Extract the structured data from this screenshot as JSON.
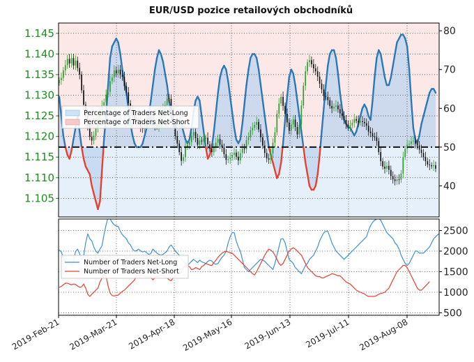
{
  "chart_data": [
    {
      "id": "price",
      "type": "candlestick",
      "title": "EUR/USD pozice retailových obchodníků",
      "left_axis": {
        "ticks": [
          "1.105",
          "1.110",
          "1.115",
          "1.120",
          "1.125",
          "1.130",
          "1.135",
          "1.140",
          "1.145"
        ],
        "range": [
          1.1005,
          1.1475
        ],
        "color": "#1f8a1f"
      },
      "right_axis": {
        "ticks": [
          "40",
          "50",
          "60",
          "70",
          "80"
        ],
        "range": [
          32,
          82
        ]
      },
      "x_ticks": [
        "2019-Feb-21",
        "2019-Mar-21",
        "2019-Apr-18",
        "2019-May-16",
        "2019-Jun-13",
        "2019-Jul-11",
        "2019-Aug-08"
      ],
      "reference_line_pct": 50,
      "legend": {
        "placement": "upper-left",
        "entries": [
          {
            "label": "Percentage of Traders Net-Long",
            "color": "#cfe3f7"
          },
          {
            "label": "Percentage of Traders Net-Short",
            "color": "#f7c9c9"
          }
        ]
      },
      "series": [
        {
          "name": "Percentage of Traders Net-Long",
          "unit": "percent",
          "above_50_color": "#2a78b8",
          "below_50_color": "#e8402f",
          "values": [
            63,
            58,
            53,
            50,
            48,
            47,
            49,
            52,
            55,
            58,
            54,
            50,
            47,
            45,
            44,
            43,
            40,
            38,
            36,
            34,
            36,
            44,
            52,
            58,
            66,
            73,
            76,
            77,
            78,
            77,
            74,
            70,
            67,
            64,
            60,
            56,
            53,
            51,
            50,
            50,
            50,
            51,
            53,
            55,
            58,
            62,
            66,
            70,
            73,
            75,
            74,
            72,
            69,
            66,
            62,
            58,
            56,
            55,
            56,
            57,
            56,
            54,
            52,
            51,
            52,
            55,
            59,
            62,
            63,
            62,
            58,
            54,
            50,
            47,
            48,
            50,
            54,
            59,
            64,
            68,
            70,
            71,
            70,
            67,
            63,
            59,
            55,
            52,
            51,
            52,
            56,
            61,
            66,
            70,
            73,
            74,
            74,
            73,
            70,
            66,
            62,
            58,
            54,
            50,
            48,
            46,
            44,
            42,
            43,
            46,
            51,
            57,
            63,
            68,
            70,
            69,
            66,
            62,
            58,
            54,
            50,
            46,
            43,
            40,
            39,
            39,
            40,
            43,
            48,
            54,
            60,
            66,
            71,
            74,
            75,
            75,
            73,
            69,
            64,
            60,
            57,
            56,
            55,
            55,
            54,
            53,
            54,
            56,
            58,
            60,
            61,
            60,
            58,
            57,
            62,
            68,
            73,
            75,
            74,
            71,
            68,
            66,
            66,
            68,
            71,
            74,
            77,
            78,
            79,
            79,
            78,
            76,
            70,
            62,
            55,
            52,
            51,
            53,
            56,
            58,
            60,
            62,
            64,
            65,
            65,
            64
          ]
        },
        {
          "name": "EUR/USD",
          "unit": "price",
          "close": [
            1.1337,
            1.1342,
            1.136,
            1.1373,
            1.1388,
            1.1377,
            1.139,
            1.1372,
            1.1384,
            1.1366,
            1.135,
            1.1312,
            1.1277,
            1.125,
            1.1226,
            1.1199,
            1.119,
            1.1202,
            1.122,
            1.1244,
            1.126,
            1.1275,
            1.1283,
            1.1301,
            1.1308,
            1.1334,
            1.1343,
            1.136,
            1.1353,
            1.1362,
            1.135,
            1.1345,
            1.1322,
            1.1307,
            1.128,
            1.1262,
            1.1255,
            1.1243,
            1.1234,
            1.124,
            1.1222,
            1.1218,
            1.1232,
            1.1243,
            1.1247,
            1.1237,
            1.1227,
            1.1226,
            1.1223,
            1.1228,
            1.1245,
            1.1267,
            1.1276,
            1.1292,
            1.1291,
            1.126,
            1.1231,
            1.1201,
            1.1183,
            1.1162,
            1.1141,
            1.115,
            1.1175,
            1.118,
            1.1186,
            1.1202,
            1.1211,
            1.1196,
            1.118,
            1.119,
            1.1188,
            1.1194,
            1.1197,
            1.1181,
            1.117,
            1.1162,
            1.1174,
            1.1185,
            1.1194,
            1.118,
            1.1173,
            1.1157,
            1.1143,
            1.1145,
            1.1148,
            1.1155,
            1.1161,
            1.1151,
            1.1142,
            1.116,
            1.1171,
            1.1169,
            1.1191,
            1.1198,
            1.1215,
            1.1221,
            1.1228,
            1.1235,
            1.1217,
            1.1198,
            1.1178,
            1.116,
            1.1147,
            1.1144,
            1.1159,
            1.1185,
            1.121,
            1.1255,
            1.128,
            1.1296,
            1.1274,
            1.1255,
            1.1234,
            1.1214,
            1.1229,
            1.1241,
            1.1223,
            1.1205,
            1.1229,
            1.1275,
            1.1323,
            1.1358,
            1.138,
            1.1385,
            1.1375,
            1.1365,
            1.1358,
            1.1345,
            1.1328,
            1.1314,
            1.1298,
            1.1296,
            1.1288,
            1.1274,
            1.1268,
            1.1272,
            1.1275,
            1.1266,
            1.1256,
            1.125,
            1.124,
            1.1229,
            1.1223,
            1.1227,
            1.1233,
            1.1242,
            1.1238,
            1.1234,
            1.1237,
            1.1235,
            1.1232,
            1.1226,
            1.1212,
            1.1208,
            1.12,
            1.1198,
            1.1189,
            1.1162,
            1.114,
            1.1127,
            1.1122,
            1.1129,
            1.1119,
            1.1104,
            1.1096,
            1.1092,
            1.1096,
            1.1095,
            1.111,
            1.115,
            1.117,
            1.118,
            1.1182,
            1.1188,
            1.119,
            1.1182,
            1.1178,
            1.1168,
            1.116,
            1.115,
            1.114,
            1.1132,
            1.113,
            1.1128,
            1.113,
            1.1122
          ]
        }
      ]
    },
    {
      "id": "counts",
      "type": "line",
      "right_axis": {
        "ticks": [
          "500",
          "1000",
          "1500",
          "2000",
          "2500"
        ],
        "range": [
          440,
          2780
        ]
      },
      "legend": {
        "placement": "lower-left",
        "entries": [
          {
            "label": "Number of Traders Net-Long",
            "color": "#3d8fd6"
          },
          {
            "label": "Number of Traders Net-Short",
            "color": "#e8402f"
          }
        ]
      },
      "series": [
        {
          "name": "Number of Traders Net-Long",
          "color": "#3d8fd6",
          "values": [
            2030,
            1980,
            1840,
            1720,
            1690,
            1740,
            1650,
            1750,
            1990,
            2050,
            1940,
            1790,
            1880,
            2200,
            2420,
            2300,
            2250,
            2100,
            2000,
            1950,
            2050,
            2130,
            2400,
            2630,
            2820,
            2780,
            2700,
            2640,
            2610,
            2600,
            2480,
            2400,
            2350,
            2300,
            2200,
            2150,
            2050,
            2000,
            2010,
            2050,
            2000,
            1980,
            2000,
            1960,
            1920,
            1940,
            2050,
            2000,
            1950,
            1920,
            1900,
            1920,
            1960,
            2000,
            2100,
            2150,
            2080,
            2000,
            1950,
            1900,
            1800,
            1750,
            1700,
            1650,
            1700,
            1750,
            1800,
            1760,
            1720,
            1780,
            1740,
            1720,
            1700,
            1750,
            1780,
            1760,
            1700,
            1680,
            1700,
            1780,
            1850,
            1900,
            2000,
            2200,
            2350,
            2450,
            2450,
            2250,
            2100,
            2000,
            1800,
            1600,
            1550,
            1500,
            1550,
            1600,
            1650,
            1700,
            1750,
            1800,
            1780,
            1750,
            1700,
            1650,
            1600,
            1550,
            1700,
            1900,
            2100,
            2300,
            2300,
            2200,
            2000,
            1800,
            1750,
            1700,
            1600,
            1550,
            1500,
            1450,
            1550,
            1650,
            1700,
            1800,
            1850,
            1900,
            2000,
            2100,
            2250,
            2350,
            2450,
            2480,
            2480,
            2350,
            2200,
            2100,
            2000,
            1950,
            1900,
            1850,
            1800,
            1850,
            1900,
            1950,
            2000,
            2050,
            2100,
            2150,
            2200,
            2250,
            2300,
            2350,
            2500,
            2620,
            2700,
            2750,
            2780,
            2790,
            2750,
            2650,
            2550,
            2450,
            2400,
            2350,
            2300,
            2200,
            2150,
            2050,
            1900,
            1800,
            1700,
            1650,
            1700,
            1800,
            1900,
            2000,
            2000,
            1950,
            1950,
            1950,
            2000,
            2050,
            2100,
            2200,
            2300,
            2350,
            2400,
            2420,
            2380
          ]
        },
        {
          "name": "Number of Traders Net-Short",
          "color": "#e8402f",
          "values": [
            1120,
            1140,
            1180,
            1220,
            1220,
            1200,
            1180,
            1200,
            1190,
            1150,
            1120,
            1130,
            1200,
            1100,
            950,
            900,
            950,
            1000,
            1050,
            1100,
            1250,
            1340,
            1450,
            1400,
            1150,
            980,
            920,
            910,
            920,
            930,
            980,
            1020,
            1050,
            1100,
            1150,
            1200,
            1250,
            1300,
            1400,
            1420,
            1400,
            1420,
            1380,
            1360,
            1380,
            1360,
            1300,
            1350,
            1380,
            1400,
            1420,
            1400,
            1380,
            1350,
            1300,
            1280,
            1350,
            1400,
            1420,
            1450,
            1480,
            1600,
            1650,
            1650,
            1620,
            1550,
            1560,
            1600,
            1580,
            1550,
            1620,
            1650,
            1700,
            1680,
            1660,
            1650,
            1720,
            1780,
            1850,
            1900,
            1950,
            1980,
            1990,
            1980,
            1960,
            1950,
            1900,
            1850,
            1800,
            1750,
            1700,
            1650,
            1600,
            1550,
            1500,
            1450,
            1420,
            1500,
            1600,
            1700,
            1800,
            1900,
            1980,
            2050,
            2020,
            1980,
            1900,
            1800,
            1700,
            1650,
            1700,
            1800,
            1900,
            2000,
            2050,
            2080,
            2050,
            2000,
            1950,
            1900,
            1800,
            1700,
            1600,
            1550,
            1500,
            1450,
            1400,
            1380,
            1380,
            1350,
            1350,
            1380,
            1400,
            1420,
            1450,
            1440,
            1420,
            1400,
            1400,
            1350,
            1300,
            1250,
            1220,
            1200,
            1150,
            1100,
            1050,
            1020,
            1000,
            980,
            960,
            920,
            900,
            900,
            900,
            900,
            920,
            950,
            970,
            980,
            1000,
            1050,
            1100,
            1200,
            1300,
            1400,
            1500,
            1550,
            1600,
            1650,
            1650,
            1600,
            1500,
            1400,
            1300,
            1200,
            1100,
            1050,
            1050,
            1100,
            1150,
            1200,
            1260
          ]
        }
      ]
    }
  ]
}
